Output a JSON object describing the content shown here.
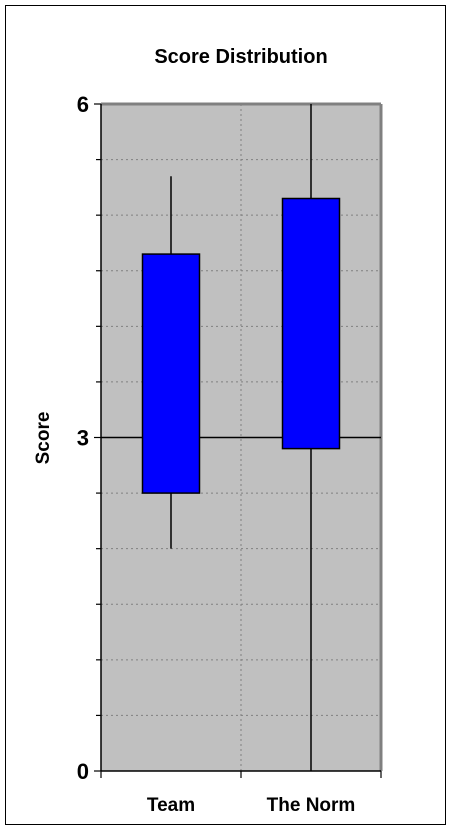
{
  "chart_data": {
    "type": "box",
    "title": "Score Distribution",
    "xlabel": "",
    "ylabel": "Score",
    "ylim": [
      0,
      6
    ],
    "y_ticks": [
      0,
      3,
      6
    ],
    "y_tick_labels": [
      "0",
      "3",
      "6"
    ],
    "minor_grid_step": 0.5,
    "grid": true,
    "legend": "none",
    "categories": [
      "Team",
      "The Norm"
    ],
    "boxes": [
      {
        "category": "Team",
        "whisker_low": 2.0,
        "q1": 2.5,
        "q3": 4.65,
        "whisker_high": 5.35
      },
      {
        "category": "The Norm",
        "whisker_low": 0.0,
        "q1": 2.9,
        "q3": 5.15,
        "whisker_high": 6.0
      }
    ],
    "reference_line": 3,
    "colors": {
      "plot_background": "#c0c0c0",
      "box_fill": "#0000ff",
      "box_stroke": "#000000",
      "grid": "#808080",
      "axis": "#000000"
    }
  }
}
